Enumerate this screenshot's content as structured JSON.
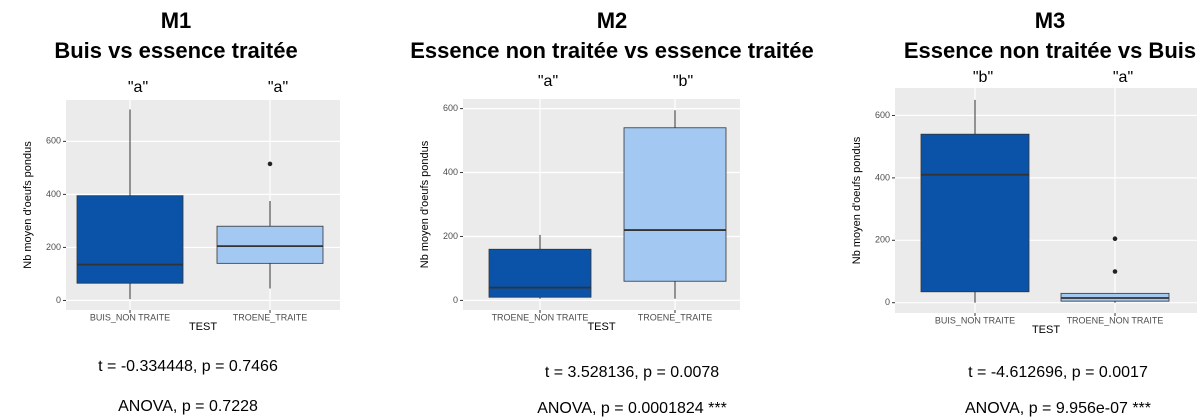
{
  "chart_data": [
    {
      "type": "box",
      "title": "M1",
      "subtitle": "Buis vs essence traitée",
      "annotations": [
        "\"a\"",
        "\"a\""
      ],
      "y_label": "Nb moyen d'oeufs pondus",
      "x_label": "TEST",
      "categories": [
        "BUIS_NON TRAITE",
        "TROENE_TRAITE"
      ],
      "boxes": [
        {
          "min": 5,
          "q1": 65,
          "median": 135,
          "q3": 395,
          "max": 720,
          "outliers": [],
          "color": "#0a53a8"
        },
        {
          "min": 45,
          "q1": 140,
          "median": 205,
          "q3": 280,
          "max": 375,
          "outliers": [
            515
          ],
          "color": "#a3c8f2"
        }
      ],
      "ylim": [
        -36,
        756
      ],
      "yticks": [
        0,
        200,
        400,
        600
      ],
      "grid": true,
      "notes": [
        "t = -0.334448, p = 0.7466",
        "ANOVA, p = 0.7228"
      ]
    },
    {
      "type": "box",
      "title": "M2",
      "subtitle": "Essence non traitée vs essence traitée",
      "annotations": [
        "\"a\"",
        "\"b\""
      ],
      "y_label": "Nb moyen d'oeufs pondus",
      "x_label": "TEST",
      "categories": [
        "TROENE_NON TRAITE",
        "TROENE_TRAITE"
      ],
      "boxes": [
        {
          "min": 5,
          "q1": 10,
          "median": 40,
          "q3": 160,
          "max": 205,
          "outliers": [],
          "color": "#0a53a8"
        },
        {
          "min": 5,
          "q1": 60,
          "median": 220,
          "q3": 540,
          "max": 595,
          "outliers": [],
          "color": "#a3c8f2"
        }
      ],
      "ylim": [
        -30,
        630
      ],
      "yticks": [
        0,
        200,
        400,
        600
      ],
      "grid": true,
      "notes": [
        "t = 3.528136, p = 0.0078",
        "ANOVA, p = 0.0001824 ***"
      ]
    },
    {
      "type": "box",
      "title": "M3",
      "subtitle": "Essence non traitée vs Buis",
      "annotations": [
        "\"b\"",
        "\"a\""
      ],
      "y_label": "Nb moyen d'oeufs pondus",
      "x_label": "TEST",
      "categories": [
        "BUIS_NON TRAITE",
        "TROENE_NON TRAITE"
      ],
      "boxes": [
        {
          "min": 0,
          "q1": 35,
          "median": 410,
          "q3": 540,
          "max": 650,
          "outliers": [],
          "color": "#0a53a8"
        },
        {
          "min": 0,
          "q1": 5,
          "median": 15,
          "q3": 30,
          "max": 30,
          "outliers": [
            100,
            205
          ],
          "color": "#a3c8f2"
        }
      ],
      "ylim": [
        -33,
        688
      ],
      "yticks": [
        0,
        200,
        400,
        600
      ],
      "grid": true,
      "notes": [
        "t = -4.612696, p = 0.0017",
        "ANOVA, p = 9.956e-07 ***"
      ]
    }
  ]
}
